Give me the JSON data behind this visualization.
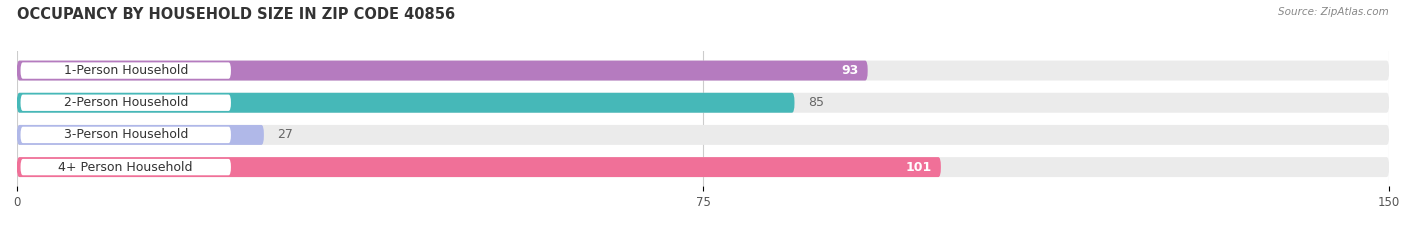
{
  "title": "OCCUPANCY BY HOUSEHOLD SIZE IN ZIP CODE 40856",
  "source": "Source: ZipAtlas.com",
  "categories": [
    "1-Person Household",
    "2-Person Household",
    "3-Person Household",
    "4+ Person Household"
  ],
  "values": [
    93,
    85,
    27,
    101
  ],
  "bar_colors": [
    "#b57bbf",
    "#46b8b8",
    "#b0b8e8",
    "#f07098"
  ],
  "bar_bg_color": "#ebebeb",
  "xlim": [
    0,
    150
  ],
  "xticks": [
    0,
    75,
    150
  ],
  "title_fontsize": 10.5,
  "label_fontsize": 9,
  "value_fontsize": 9,
  "background_color": "#ffffff",
  "value_inside_color": "#ffffff",
  "value_outside_color": "#666666"
}
